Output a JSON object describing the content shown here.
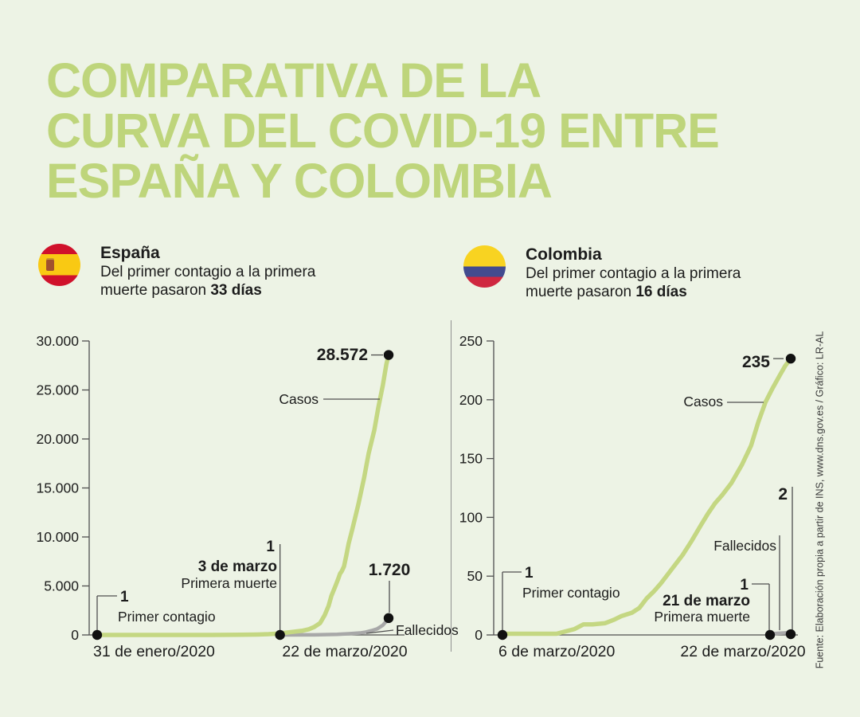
{
  "page": {
    "title": "COMPARATIVA DE LA\nCURVA DEL COVID-19 ENTRE\nESPAÑA Y COLOMBIA",
    "title_color": "#bed57b",
    "background": "#edf3e5",
    "source_note": "Fuente: Elaboración propia a partir de INS, www.dns.gov.es / Gráfico: LR-AL"
  },
  "colors": {
    "cases": "#c4d782",
    "deaths": "#a8a8a8",
    "line": "#4f4f4f",
    "dot": "#111111",
    "spain_red": "#d0112b",
    "spain_yellow": "#f9c913",
    "colombia_yellow": "#f8d321",
    "colombia_blue": "#424b8f",
    "colombia_red": "#cf2740"
  },
  "panels": [
    {
      "id": "espana",
      "country": "España",
      "desc_prefix": "Del primer contagio a la primera muerte pasaron",
      "desc_bold": "33 días",
      "flag": "spain-flag"
    },
    {
      "id": "colombia",
      "country": "Colombia",
      "desc_prefix": "Del primer contagio a la primera muerte pasaron",
      "desc_bold": "16 días",
      "flag": "colombia-flag"
    }
  ],
  "chart_data": [
    {
      "id": "espana",
      "type": "line",
      "country": "España",
      "ylim": [
        0,
        30000
      ],
      "grid": false,
      "y_ticks": [
        {
          "v": 0,
          "label": "0"
        },
        {
          "v": 5000,
          "label": "5.000"
        },
        {
          "v": 10000,
          "label": "10.000"
        },
        {
          "v": 15000,
          "label": "15.000"
        },
        {
          "v": 20000,
          "label": "20.000"
        },
        {
          "v": 25000,
          "label": "25.000"
        },
        {
          "v": 30000,
          "label": "30.000"
        }
      ],
      "x_range_days": 51,
      "x_labels": {
        "start": "31 de enero/2020",
        "end": "22 de marzo/2020"
      },
      "series": [
        {
          "name": "Casos",
          "role": "cases",
          "end_label": "28.572",
          "end_value": 28572,
          "points": [
            [
              0,
              1
            ],
            [
              5,
              1
            ],
            [
              10,
              2
            ],
            [
              15,
              2
            ],
            [
              20,
              5
            ],
            [
              25,
              20
            ],
            [
              28,
              45
            ],
            [
              30,
              84
            ],
            [
              32,
              150
            ],
            [
              34,
              300
            ],
            [
              36,
              440
            ],
            [
              37,
              570
            ],
            [
              38,
              820
            ],
            [
              39,
              1200
            ],
            [
              39.8,
              2000
            ],
            [
              40.5,
              2965
            ],
            [
              41,
              4000
            ],
            [
              41.7,
              5000
            ],
            [
              42.2,
              5750
            ],
            [
              42.5,
              6250
            ],
            [
              42.8,
              6500
            ],
            [
              43.2,
              7000
            ],
            [
              43.6,
              8100
            ],
            [
              44,
              9300
            ],
            [
              44.7,
              10900
            ],
            [
              45.7,
              13300
            ],
            [
              46.7,
              16000
            ],
            [
              47.5,
              18500
            ],
            [
              48.5,
              20900
            ],
            [
              49.2,
              23200
            ],
            [
              50,
              25500
            ],
            [
              50.6,
              27600
            ],
            [
              51,
              28572
            ]
          ]
        },
        {
          "name": "Fallecidos",
          "role": "deaths",
          "end_label": "1.720",
          "end_value": 1720,
          "points": [
            [
              32,
              1
            ],
            [
              38,
              10
            ],
            [
              42,
              60
            ],
            [
              44,
              120
            ],
            [
              46,
              200
            ],
            [
              47,
              290
            ],
            [
              48,
              440
            ],
            [
              49,
              620
            ],
            [
              50,
              1000
            ],
            [
              50.6,
              1400
            ],
            [
              51,
              1720
            ]
          ]
        }
      ],
      "annotations": {
        "first_case": {
          "value": "1",
          "label": "Primer contagio",
          "day": 0
        },
        "first_death": {
          "value": "1",
          "date": "3 de marzo",
          "label": "Primera muerte",
          "day": 32
        },
        "cases_label": "Casos",
        "deaths_label": "Fallecidos"
      }
    },
    {
      "id": "colombia",
      "type": "line",
      "country": "Colombia",
      "ylim": [
        0,
        250
      ],
      "grid": false,
      "y_ticks": [
        {
          "v": 0,
          "label": "0"
        },
        {
          "v": 50,
          "label": "50"
        },
        {
          "v": 100,
          "label": "100"
        },
        {
          "v": 150,
          "label": "150"
        },
        {
          "v": 200,
          "label": "200"
        },
        {
          "v": 250,
          "label": "250"
        }
      ],
      "x_range_days": 16,
      "x_labels": {
        "start": "6 de marzo/2020",
        "end": "22 de marzo/2020"
      },
      "series": [
        {
          "name": "Casos",
          "role": "cases",
          "end_label": "235",
          "end_value": 235,
          "points": [
            [
              0,
              1
            ],
            [
              1,
              1
            ],
            [
              2,
              1
            ],
            [
              3,
              1
            ],
            [
              3.5,
              3
            ],
            [
              4,
              5
            ],
            [
              4.5,
              9
            ],
            [
              5,
              9
            ],
            [
              5.7,
              10
            ],
            [
              6.2,
              13
            ],
            [
              6.6,
              16
            ],
            [
              7.2,
              19
            ],
            [
              7.6,
              23
            ],
            [
              8,
              31
            ],
            [
              8.4,
              37
            ],
            [
              8.8,
              44
            ],
            [
              9.2,
              52
            ],
            [
              9.6,
              60
            ],
            [
              10,
              68
            ],
            [
              10.5,
              80
            ],
            [
              11,
              93
            ],
            [
              11.4,
              103
            ],
            [
              11.8,
              112
            ],
            [
              12.2,
              119
            ],
            [
              12.7,
              129
            ],
            [
              13.3,
              145
            ],
            [
              13.8,
              161
            ],
            [
              14.2,
              181
            ],
            [
              14.6,
              198
            ],
            [
              15,
              210
            ],
            [
              15.4,
              221
            ],
            [
              15.7,
              229
            ],
            [
              16,
              235
            ]
          ]
        },
        {
          "name": "Fallecidos",
          "role": "deaths",
          "end_label": "2",
          "end_value": 2,
          "points": [
            [
              14.9,
              1
            ],
            [
              16,
              2
            ]
          ]
        }
      ],
      "annotations": {
        "first_case": {
          "value": "1",
          "label": "Primer contagio",
          "day": 0
        },
        "first_death": {
          "value": "1",
          "date": "21 de marzo",
          "label": "Primera muerte",
          "day": 15
        },
        "cases_label": "Casos",
        "deaths_label": "Fallecidos"
      }
    }
  ]
}
